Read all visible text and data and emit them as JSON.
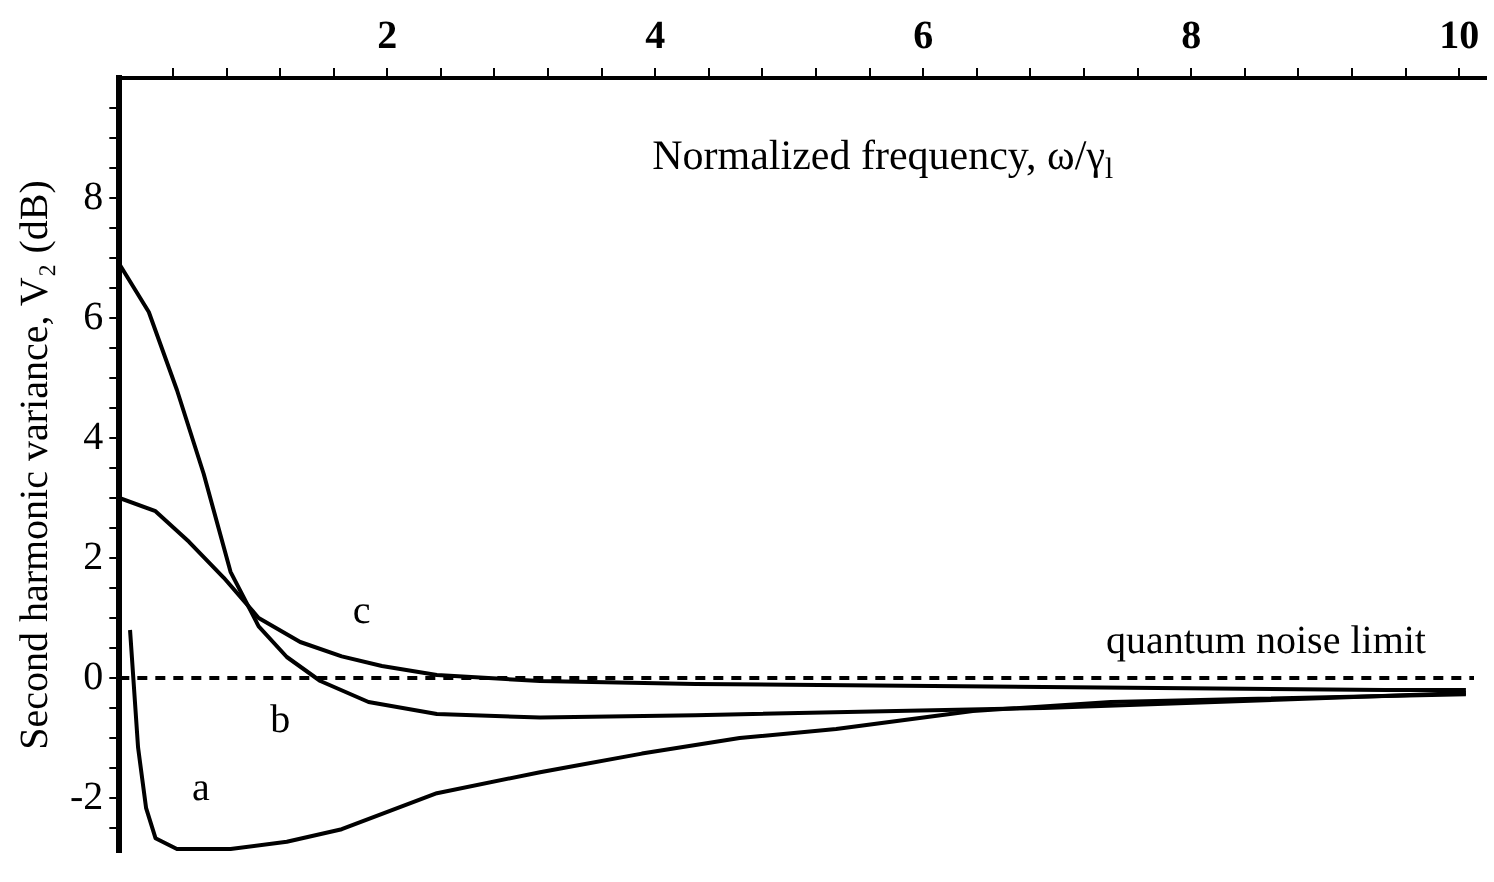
{
  "chart_data": {
    "type": "line",
    "xlabel": "Normalized frequency, ω/γ$_{l}$",
    "ylabel": "Second harmonic variance, V₂ (dB)",
    "xlim": [
      0,
      10.2
    ],
    "ylim": [
      -2.9,
      10
    ],
    "xticks": [
      {
        "value": 0.4,
        "label": null
      },
      {
        "value": 0.8,
        "label": null
      },
      {
        "value": 1.2,
        "label": null
      },
      {
        "value": 1.6,
        "label": null
      },
      2,
      {
        "value": 2.4,
        "label": null
      },
      {
        "value": 2.8,
        "label": null
      },
      {
        "value": 3.2,
        "label": null
      },
      {
        "value": 3.6,
        "label": null
      },
      4,
      {
        "value": 4.4,
        "label": null
      },
      {
        "value": 4.8,
        "label": null
      },
      {
        "value": 5.2,
        "label": null
      },
      {
        "value": 5.6,
        "label": null
      },
      6,
      {
        "value": 6.4,
        "label": null
      },
      {
        "value": 6.8,
        "label": null
      },
      {
        "value": 7.2,
        "label": null
      },
      {
        "value": 7.6,
        "label": null
      },
      8,
      {
        "value": 8.4,
        "label": null
      },
      {
        "value": 8.8,
        "label": null
      },
      {
        "value": 9.2,
        "label": null
      },
      {
        "value": 9.6,
        "label": null
      },
      10
    ],
    "yticks": [
      {
        "value": -2.5,
        "label": null
      },
      -2,
      {
        "value": -1.5,
        "label": null
      },
      {
        "value": -1,
        "label": null
      },
      {
        "value": -0.5,
        "label": null
      },
      0,
      {
        "value": 0.5,
        "label": null
      },
      {
        "value": 1,
        "label": null
      },
      {
        "value": 1.5,
        "label": null
      },
      2,
      {
        "value": 2.5,
        "label": null
      },
      {
        "value": 3,
        "label": null
      },
      {
        "value": 3.5,
        "label": null
      },
      4,
      {
        "value": 4.5,
        "label": null
      },
      {
        "value": 5,
        "label": null
      },
      {
        "value": 5.5,
        "label": null
      },
      6,
      {
        "value": 6.5,
        "label": null
      },
      {
        "value": 7,
        "label": null
      },
      {
        "value": 7.5,
        "label": null
      },
      8,
      {
        "value": 8.5,
        "label": null
      },
      {
        "value": 9,
        "label": null
      },
      {
        "value": 9.5,
        "label": null
      }
    ],
    "marker": "none",
    "line_style": "solid",
    "series": [
      {
        "name": "a",
        "color": "#000000",
        "x": [
          0.08,
          0.14,
          0.2,
          0.27,
          0.43,
          0.83,
          1.25,
          1.66,
          2.37,
          3.14,
          3.9,
          4.63,
          5.35,
          6.37,
          7.4,
          8.4,
          10.05
        ],
        "values": [
          0.8,
          -1.16,
          -2.17,
          -2.67,
          -2.85,
          -2.85,
          -2.73,
          -2.52,
          -1.92,
          -1.57,
          -1.26,
          -1.0,
          -0.85,
          -0.55,
          -0.4,
          -0.35,
          -0.27
        ]
      },
      {
        "name": "b",
        "color": "#000000",
        "x": [
          0,
          0.22,
          0.43,
          0.63,
          0.83,
          1.04,
          1.25,
          1.5,
          1.86,
          2.37,
          3.14,
          4.3,
          6.9,
          10.05
        ],
        "values": [
          6.9,
          6.1,
          4.8,
          3.4,
          1.77,
          0.86,
          0.35,
          -0.05,
          -0.4,
          -0.6,
          -0.66,
          -0.62,
          -0.5,
          -0.25
        ]
      },
      {
        "name": "c",
        "color": "#000000",
        "x": [
          0,
          0.27,
          0.52,
          0.78,
          1.04,
          1.35,
          1.66,
          1.96,
          2.37,
          3.14,
          4.3,
          9.45,
          10.05
        ],
        "values": [
          3.0,
          2.78,
          2.27,
          1.67,
          1.0,
          0.6,
          0.36,
          0.2,
          0.05,
          -0.05,
          -0.1,
          -0.2,
          -0.2
        ]
      }
    ],
    "ref_lines": [
      {
        "axis": "y",
        "value": 0,
        "label": "quantum noise limit",
        "line_style": "dashed",
        "color": "#000000"
      }
    ]
  }
}
